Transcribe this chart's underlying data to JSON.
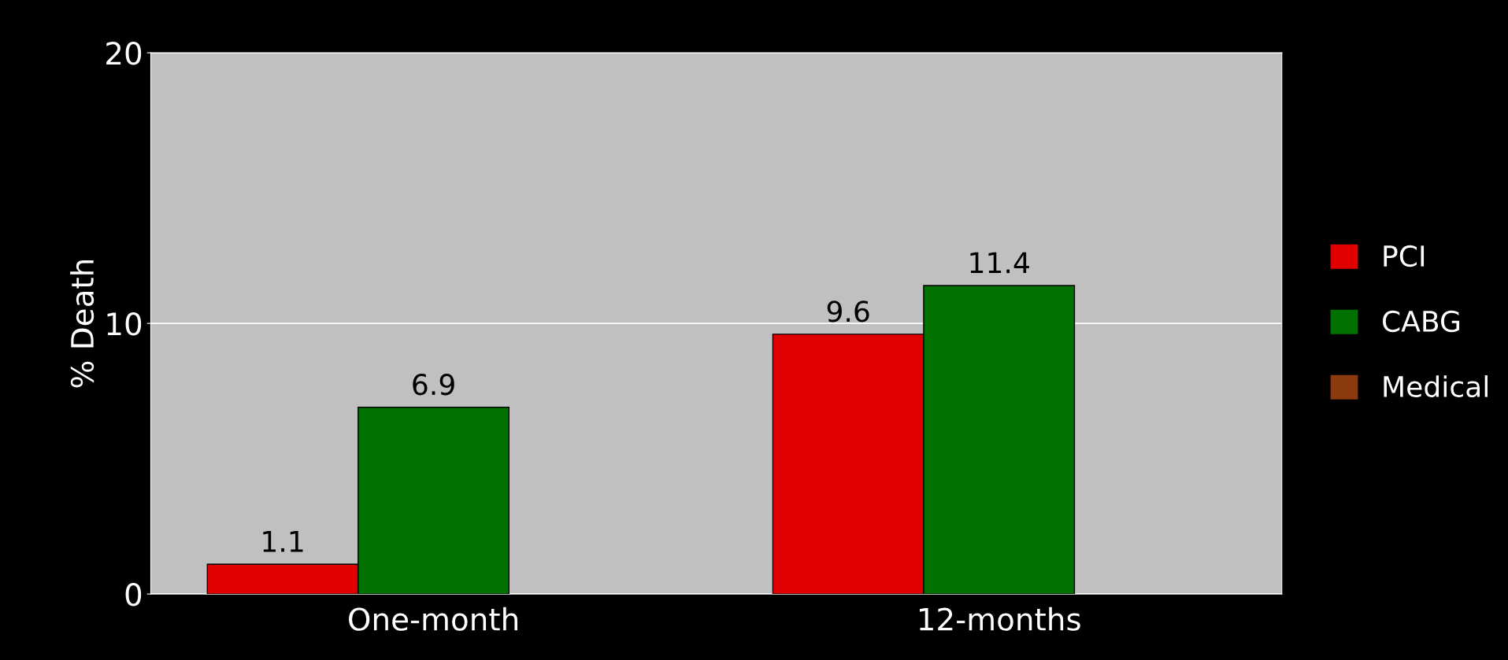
{
  "chart_data": {
    "type": "bar",
    "ylabel": "% Death",
    "categories": [
      "One-month",
      "12-months"
    ],
    "series": [
      {
        "name": "PCI",
        "color": "#e00000",
        "values": [
          1.1,
          9.6
        ]
      },
      {
        "name": "CABG",
        "color": "#007000",
        "values": [
          6.9,
          11.4
        ]
      },
      {
        "name": "Medical",
        "color": "#8b3a0f",
        "values": [
          null,
          null
        ]
      }
    ],
    "ylim": [
      0,
      20
    ],
    "yticks": [
      0,
      10,
      20
    ],
    "grid": "y",
    "legend": "right",
    "data_labels": true
  }
}
